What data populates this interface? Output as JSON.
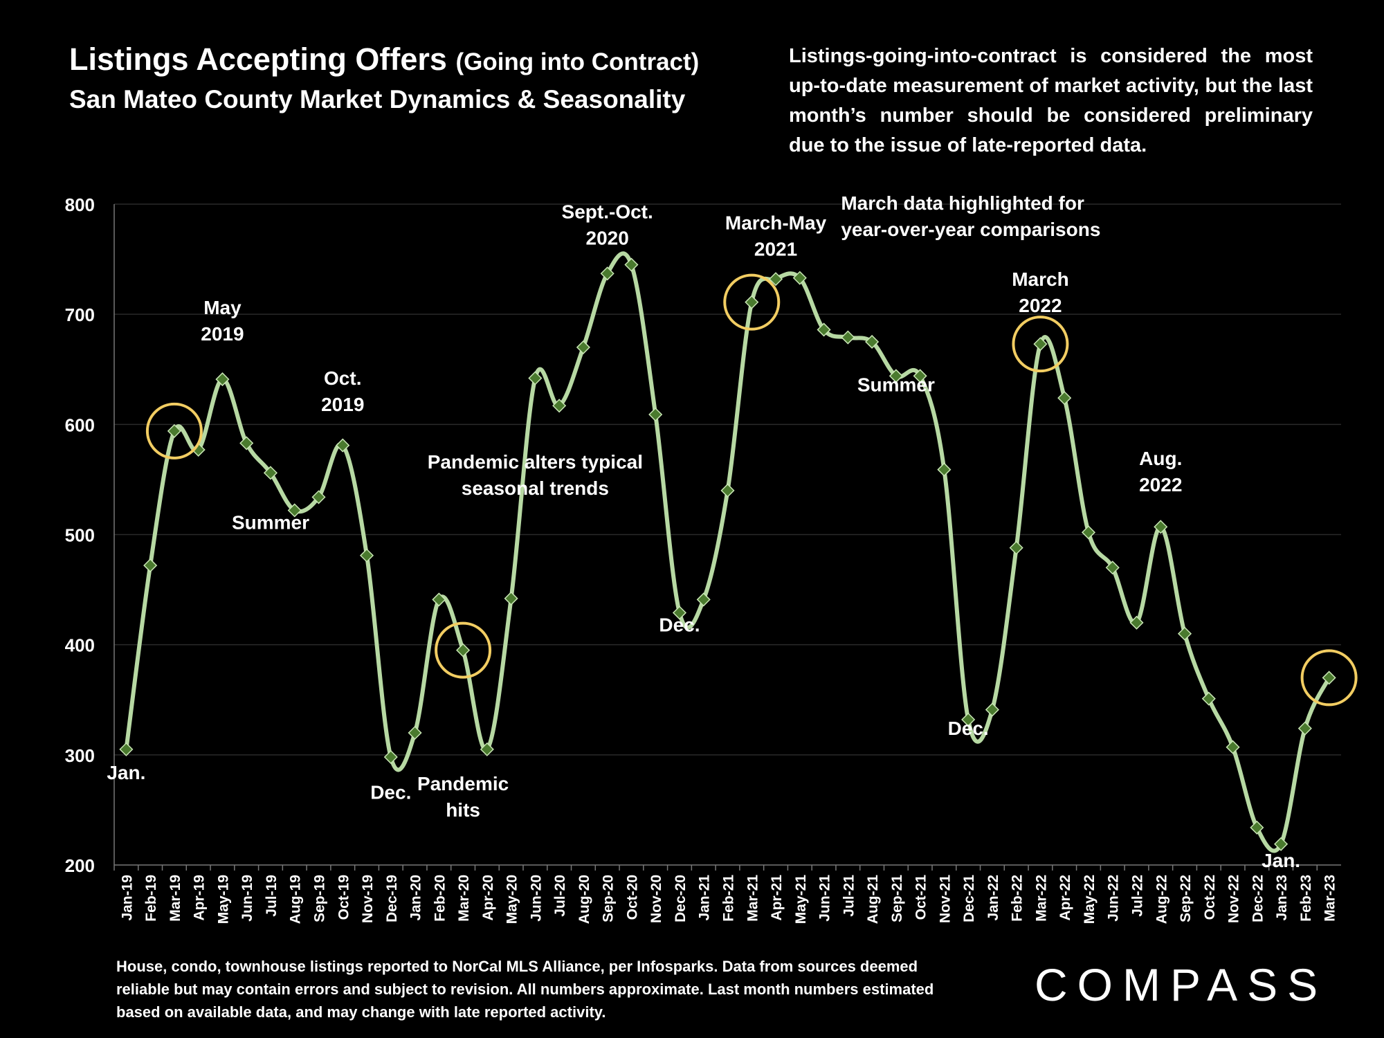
{
  "header": {
    "title_main": "Listings Accepting Offers",
    "title_paren": "(Going into Contract)",
    "subtitle": "San Mateo County Market Dynamics & Seasonality",
    "note": "Listings-going-into-contract is considered the most up-to-date measurement of market activity, but the last month’s number should be considered preliminary due to the issue of late-reported data."
  },
  "footer": {
    "text": "House, condo, townhouse listings reported to NorCal MLS Alliance, per Infosparks. Data from sources deemed reliable but may contain errors and subject to revision. All numbers approximate. Last month numbers estimated based on available data, and may change with late reported activity.",
    "logo": "COMPASS"
  },
  "colors": {
    "background": "#000000",
    "line": "#b7d9a3",
    "marker": "#4a7a2e",
    "highlight": "#f2cd62",
    "grid": "#2a2a2a"
  },
  "chart_data": {
    "type": "line",
    "title": "Listings Accepting Offers (Going into Contract)",
    "subtitle": "San Mateo County Market Dynamics & Seasonality",
    "xlabel": "",
    "ylabel": "",
    "ylim": [
      200,
      800
    ],
    "yticks": [
      200,
      300,
      400,
      500,
      600,
      700,
      800
    ],
    "grid": true,
    "legend": "none",
    "categories": [
      "Jan-19",
      "Feb-19",
      "Mar-19",
      "Apr-19",
      "May-19",
      "Jun-19",
      "Jul-19",
      "Aug-19",
      "Sep-19",
      "Oct-19",
      "Nov-19",
      "Dec-19",
      "Jan-20",
      "Feb-20",
      "Mar-20",
      "Apr-20",
      "May-20",
      "Jun-20",
      "Jul-20",
      "Aug-20",
      "Sep-20",
      "Oct-20",
      "Nov-20",
      "Dec-20",
      "Jan-21",
      "Feb-21",
      "Mar-21",
      "Apr-21",
      "May-21",
      "Jun-21",
      "Jul-21",
      "Aug-21",
      "Sep-21",
      "Oct-21",
      "Nov-21",
      "Dec-21",
      "Jan-22",
      "Feb-22",
      "Mar-22",
      "Apr-22",
      "May-22",
      "Jun-22",
      "Jul-22",
      "Aug-22",
      "Sep-22",
      "Oct-22",
      "Nov-22",
      "Dec-22",
      "Jan-23",
      "Feb-23",
      "Mar-23"
    ],
    "values": [
      305,
      472,
      594,
      577,
      641,
      583,
      556,
      522,
      534,
      581,
      481,
      298,
      320,
      441,
      395,
      305,
      442,
      642,
      617,
      670,
      737,
      745,
      609,
      429,
      441,
      540,
      711,
      732,
      733,
      686,
      679,
      675,
      644,
      644,
      559,
      332,
      341,
      488,
      673,
      624,
      502,
      470,
      420,
      507,
      410,
      351,
      307,
      234,
      219,
      324,
      370
    ],
    "highlighted": [
      "Mar-19",
      "Mar-20",
      "Mar-21",
      "Mar-22",
      "Mar-23"
    ],
    "annotations": [
      {
        "text": "Jan.",
        "x": "Jan-19",
        "y": 278
      },
      {
        "text": "May 2019",
        "x": "May-19",
        "y": 700
      },
      {
        "text": "Summer",
        "x": "Jul-19",
        "y": 505
      },
      {
        "text": "Oct. 2019",
        "x": "Oct-19",
        "y": 636
      },
      {
        "text": "Dec.",
        "x": "Dec-19",
        "y": 260
      },
      {
        "text": "Pandemic hits",
        "x": "Mar-20",
        "y": 268
      },
      {
        "text": "Pandemic alters typical seasonal trends",
        "x": "Jun-20",
        "y": 560
      },
      {
        "text": "Sept.-Oct. 2020",
        "x": "Sep-20",
        "y": 787
      },
      {
        "text": "Dec.",
        "x": "Dec-20",
        "y": 412
      },
      {
        "text": "March-May 2021",
        "x": "Apr-21",
        "y": 777
      },
      {
        "text": "Summer",
        "x": "Sep-21",
        "y": 630
      },
      {
        "text": "March data highlighted for year-over-year comparisons",
        "x": "Jul-21",
        "y": 795
      },
      {
        "text": "March 2022",
        "x": "Mar-22",
        "y": 726
      },
      {
        "text": "Dec.",
        "x": "Dec-21",
        "y": 318
      },
      {
        "text": "Aug. 2022",
        "x": "Aug-22",
        "y": 563
      },
      {
        "text": "Jan.",
        "x": "Jan-23",
        "y": 198
      }
    ]
  }
}
